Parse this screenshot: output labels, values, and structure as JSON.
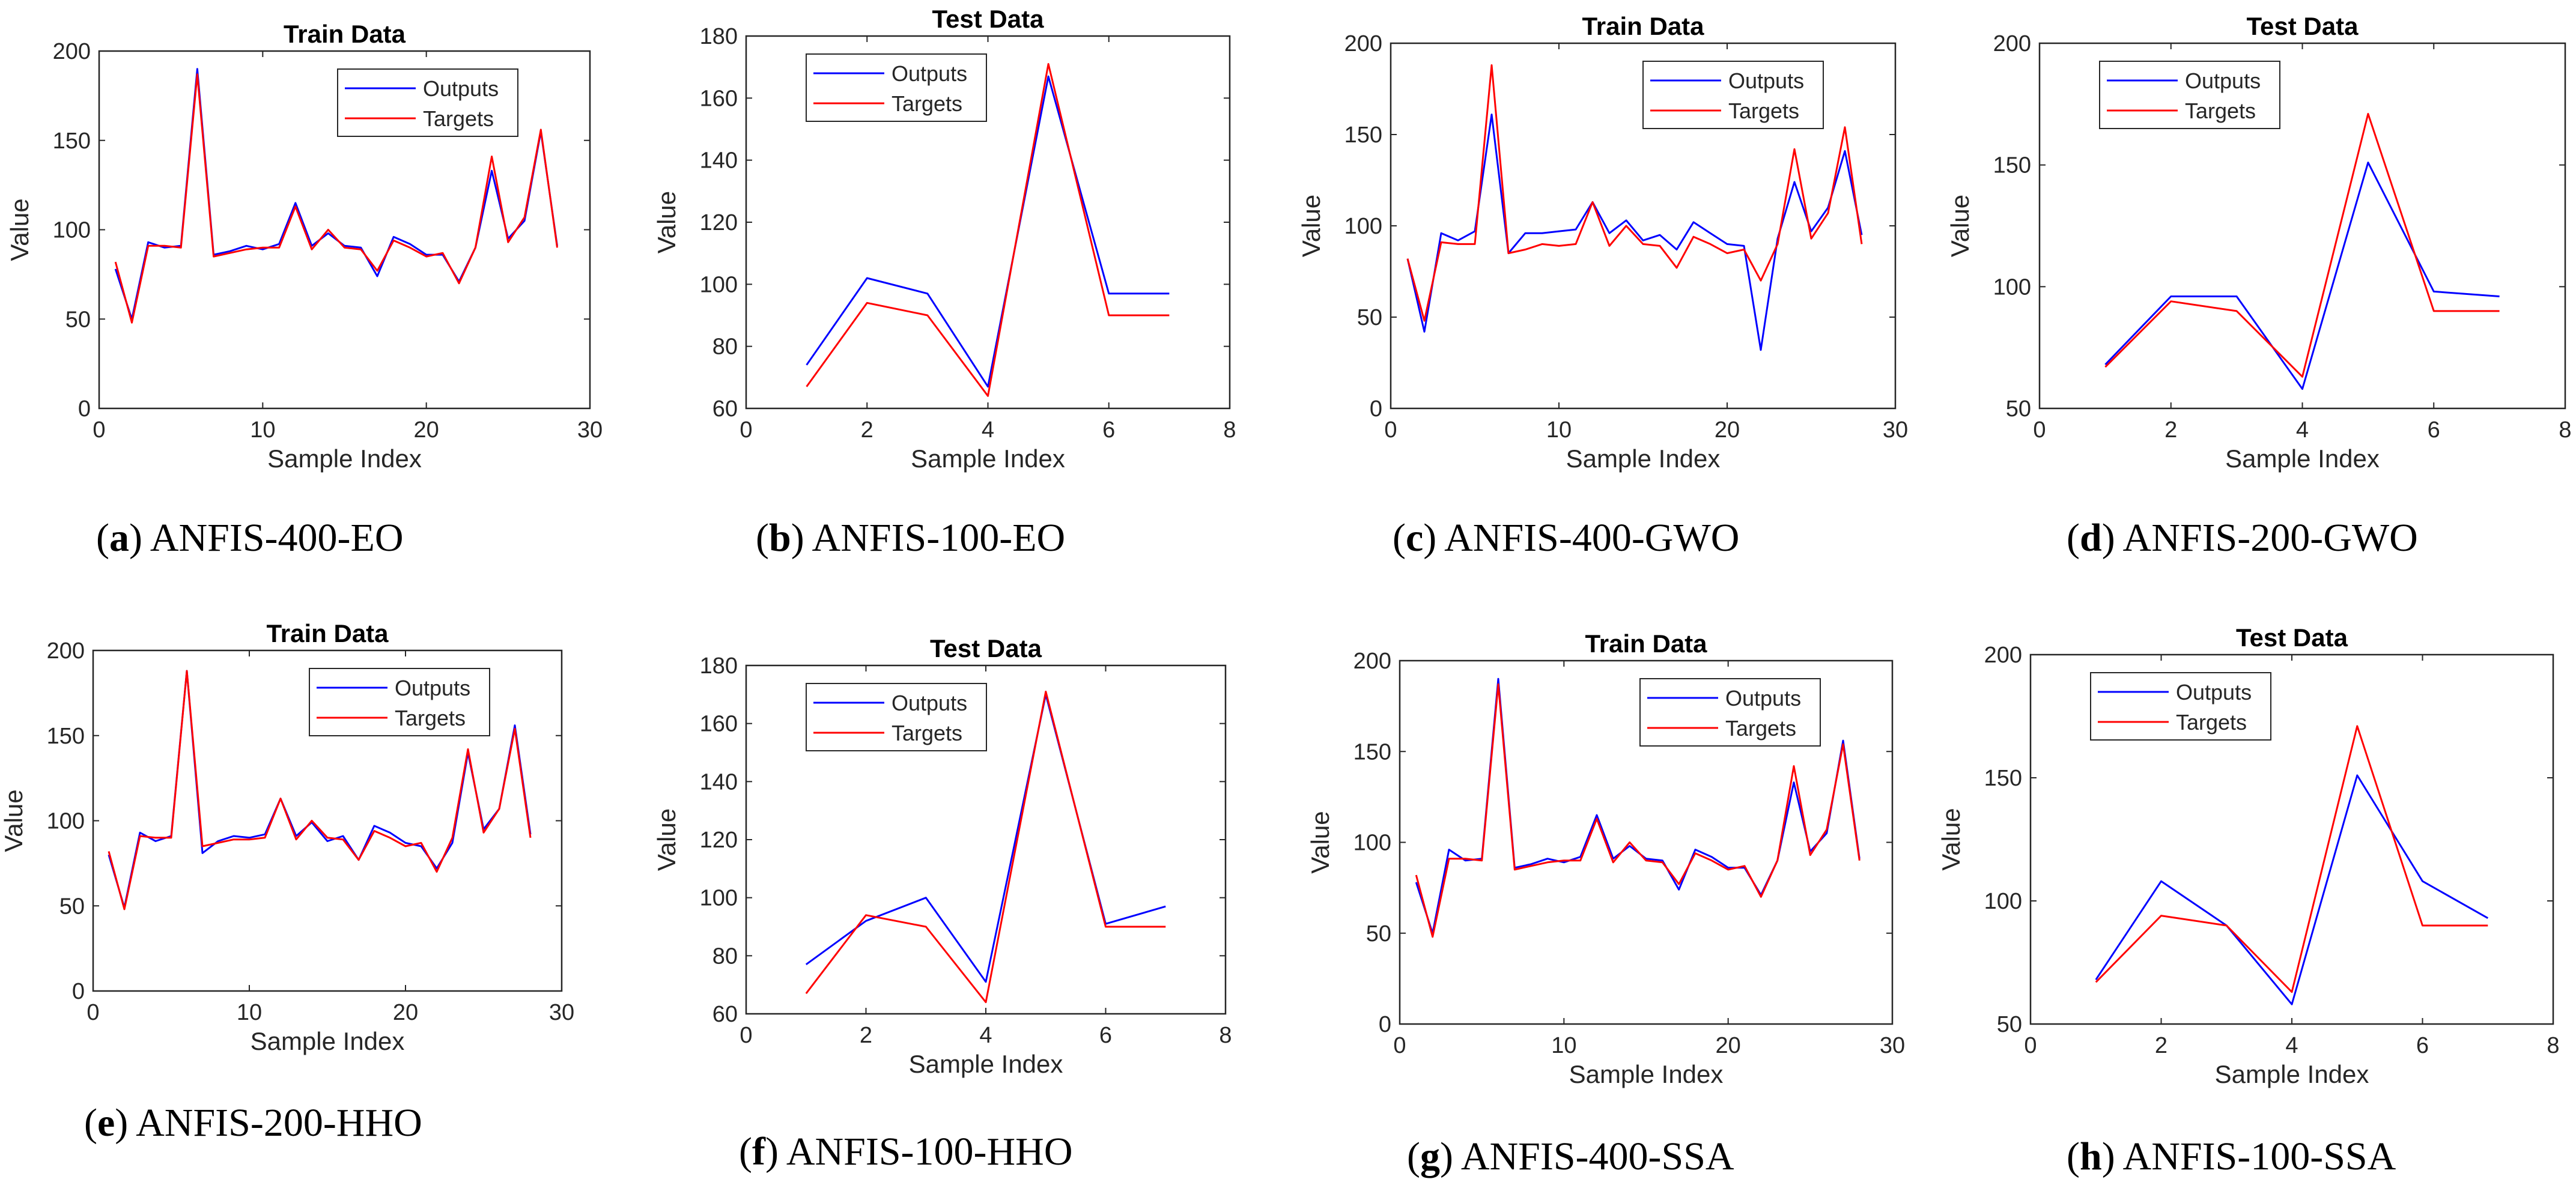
{
  "colors": {
    "outputs": "#0000ff",
    "targets": "#ff0000",
    "axis": "#262626"
  },
  "chart_data": [
    {
      "type": "line",
      "title": "Train Data",
      "xlabel": "Sample Index",
      "ylabel": "Value",
      "xlim": [
        0,
        30
      ],
      "ylim": [
        0,
        200
      ],
      "xticks": [
        0,
        10,
        20,
        30
      ],
      "yticks": [
        0,
        50,
        100,
        150,
        200
      ],
      "legend_position": "top-right",
      "grid": false,
      "caption_letter": "a",
      "caption_text": "ANFIS-400-EO",
      "x": [
        1,
        2,
        3,
        4,
        5,
        6,
        7,
        8,
        9,
        10,
        11,
        12,
        13,
        14,
        15,
        16,
        17,
        18,
        19,
        20,
        21,
        22,
        23,
        24,
        25,
        26,
        27,
        28
      ],
      "series": [
        {
          "name": "Outputs",
          "color": "#0000ff",
          "values": [
            78,
            50,
            93,
            90,
            91,
            190,
            86,
            88,
            91,
            89,
            92,
            115,
            91,
            98,
            91,
            90,
            74,
            96,
            92,
            86,
            86,
            71,
            90,
            133,
            95,
            105,
            155,
            91
          ]
        },
        {
          "name": "Targets",
          "color": "#ff0000",
          "values": [
            82,
            48,
            91,
            91,
            90,
            187,
            85,
            87,
            89,
            90,
            90,
            113,
            89,
            100,
            90,
            89,
            77,
            94,
            90,
            85,
            87,
            70,
            90,
            141,
            93,
            107,
            156,
            90
          ]
        }
      ]
    },
    {
      "type": "line",
      "title": "Test Data",
      "xlabel": "Sample Index",
      "ylabel": "Value",
      "xlim": [
        0,
        8
      ],
      "ylim": [
        60,
        180
      ],
      "xticks": [
        0,
        2,
        4,
        6,
        8
      ],
      "yticks": [
        60,
        80,
        100,
        120,
        140,
        160,
        180
      ],
      "legend_position": "top-left",
      "grid": false,
      "caption_letter": "b",
      "caption_text": "ANFIS-100-EO",
      "x": [
        1,
        2,
        3,
        4,
        5,
        6,
        7
      ],
      "series": [
        {
          "name": "Outputs",
          "color": "#0000ff",
          "values": [
            74,
            102,
            97,
            67,
            167,
            97,
            97
          ]
        },
        {
          "name": "Targets",
          "color": "#ff0000",
          "values": [
            67,
            94,
            90,
            64,
            171,
            90,
            90
          ]
        }
      ]
    },
    {
      "type": "line",
      "title": "Train Data",
      "xlabel": "Sample Index",
      "ylabel": "Value",
      "xlim": [
        0,
        30
      ],
      "ylim": [
        0,
        200
      ],
      "xticks": [
        0,
        10,
        20,
        30
      ],
      "yticks": [
        0,
        50,
        100,
        150,
        200
      ],
      "legend_position": "top-right",
      "grid": false,
      "caption_letter": "c",
      "caption_text": "ANFIS-400-GWO",
      "x": [
        1,
        2,
        3,
        4,
        5,
        6,
        7,
        8,
        9,
        10,
        11,
        12,
        13,
        14,
        15,
        16,
        17,
        18,
        19,
        20,
        21,
        22,
        23,
        24,
        25,
        26,
        27,
        28
      ],
      "series": [
        {
          "name": "Outputs",
          "color": "#0000ff",
          "values": [
            82,
            42,
            96,
            92,
            97,
            161,
            85,
            96,
            96,
            97,
            98,
            113,
            96,
            103,
            92,
            95,
            87,
            102,
            96,
            90,
            89,
            32,
            93,
            124,
            97,
            110,
            141,
            95
          ]
        },
        {
          "name": "Targets",
          "color": "#ff0000",
          "values": [
            82,
            48,
            91,
            90,
            90,
            188,
            85,
            87,
            90,
            89,
            90,
            113,
            89,
            100,
            90,
            89,
            77,
            94,
            90,
            85,
            87,
            70,
            90,
            142,
            93,
            107,
            154,
            90
          ]
        }
      ]
    },
    {
      "type": "line",
      "title": "Test Data",
      "xlabel": "Sample Index",
      "ylabel": "Value",
      "xlim": [
        0,
        8
      ],
      "ylim": [
        50,
        200
      ],
      "xticks": [
        0,
        2,
        4,
        6,
        8
      ],
      "yticks": [
        50,
        100,
        150,
        200
      ],
      "legend_position": "top-left",
      "grid": false,
      "caption_letter": "d",
      "caption_text": "ANFIS-200-GWO",
      "x": [
        1,
        2,
        3,
        4,
        5,
        6,
        7
      ],
      "series": [
        {
          "name": "Outputs",
          "color": "#0000ff",
          "values": [
            68,
            96,
            96,
            58,
            151,
            98,
            96
          ]
        },
        {
          "name": "Targets",
          "color": "#ff0000",
          "values": [
            67,
            94,
            90,
            63,
            171,
            90,
            90
          ]
        }
      ]
    },
    {
      "type": "line",
      "title": "Train Data",
      "xlabel": "Sample Index",
      "ylabel": "Value",
      "xlim": [
        0,
        30
      ],
      "ylim": [
        0,
        200
      ],
      "xticks": [
        0,
        10,
        20,
        30
      ],
      "yticks": [
        0,
        50,
        100,
        150,
        200
      ],
      "legend_position": "top-right",
      "grid": false,
      "caption_letter": "e",
      "caption_text": "ANFIS-200-HHO",
      "x": [
        1,
        2,
        3,
        4,
        5,
        6,
        7,
        8,
        9,
        10,
        11,
        12,
        13,
        14,
        15,
        16,
        17,
        18,
        19,
        20,
        21,
        22,
        23,
        24,
        25,
        26,
        27,
        28
      ],
      "series": [
        {
          "name": "Outputs",
          "color": "#0000ff",
          "values": [
            80,
            49,
            93,
            88,
            91,
            188,
            81,
            88,
            91,
            90,
            92,
            113,
            91,
            99,
            88,
            91,
            77,
            97,
            93,
            87,
            85,
            72,
            87,
            140,
            95,
            107,
            156,
            92
          ]
        },
        {
          "name": "Targets",
          "color": "#ff0000",
          "values": [
            82,
            48,
            91,
            90,
            90,
            188,
            85,
            87,
            89,
            89,
            90,
            113,
            89,
            100,
            90,
            89,
            77,
            94,
            90,
            85,
            87,
            70,
            90,
            142,
            93,
            107,
            154,
            90
          ]
        }
      ]
    },
    {
      "type": "line",
      "title": "Test Data",
      "xlabel": "Sample Index",
      "ylabel": "Value",
      "xlim": [
        0,
        8
      ],
      "ylim": [
        60,
        180
      ],
      "xticks": [
        0,
        2,
        4,
        6,
        8
      ],
      "yticks": [
        60,
        80,
        100,
        120,
        140,
        160,
        180
      ],
      "legend_position": "top-left",
      "grid": false,
      "caption_letter": "f",
      "caption_text": "ANFIS-100-HHO",
      "x": [
        1,
        2,
        3,
        4,
        5,
        6,
        7
      ],
      "series": [
        {
          "name": "Outputs",
          "color": "#0000ff",
          "values": [
            77,
            92,
            100,
            71,
            170,
            91,
            97
          ]
        },
        {
          "name": "Targets",
          "color": "#ff0000",
          "values": [
            67,
            94,
            90,
            64,
            171,
            90,
            90
          ]
        }
      ]
    },
    {
      "type": "line",
      "title": "Train Data",
      "xlabel": "Sample Index",
      "ylabel": "Value",
      "xlim": [
        0,
        30
      ],
      "ylim": [
        0,
        200
      ],
      "xticks": [
        0,
        10,
        20,
        30
      ],
      "yticks": [
        0,
        50,
        100,
        150,
        200
      ],
      "legend_position": "top-right",
      "grid": false,
      "caption_letter": "g",
      "caption_text": "ANFIS-400-SSA",
      "x": [
        1,
        2,
        3,
        4,
        5,
        6,
        7,
        8,
        9,
        10,
        11,
        12,
        13,
        14,
        15,
        16,
        17,
        18,
        19,
        20,
        21,
        22,
        23,
        24,
        25,
        26,
        27,
        28
      ],
      "series": [
        {
          "name": "Outputs",
          "color": "#0000ff",
          "values": [
            78,
            50,
            96,
            90,
            91,
            190,
            86,
            88,
            91,
            89,
            92,
            115,
            91,
            98,
            91,
            90,
            74,
            96,
            92,
            86,
            86,
            71,
            90,
            133,
            95,
            105,
            156,
            91
          ]
        },
        {
          "name": "Targets",
          "color": "#ff0000",
          "values": [
            82,
            48,
            91,
            91,
            90,
            187,
            85,
            87,
            89,
            90,
            90,
            113,
            89,
            100,
            90,
            89,
            77,
            94,
            90,
            85,
            87,
            70,
            90,
            142,
            93,
            107,
            154,
            90
          ]
        }
      ]
    },
    {
      "type": "line",
      "title": "Test Data",
      "xlabel": "Sample Index",
      "ylabel": "Value",
      "xlim": [
        0,
        8
      ],
      "ylim": [
        50,
        200
      ],
      "xticks": [
        0,
        2,
        4,
        6,
        8
      ],
      "yticks": [
        50,
        100,
        150,
        200
      ],
      "legend_position": "top-left",
      "grid": false,
      "caption_letter": "h",
      "caption_text": "ANFIS-100-SSA",
      "x": [
        1,
        2,
        3,
        4,
        5,
        6,
        7
      ],
      "series": [
        {
          "name": "Outputs",
          "color": "#0000ff",
          "values": [
            68,
            108,
            90,
            58,
            151,
            108,
            93
          ]
        },
        {
          "name": "Targets",
          "color": "#ff0000",
          "values": [
            67,
            94,
            90,
            63,
            171,
            90,
            90
          ]
        }
      ]
    }
  ]
}
